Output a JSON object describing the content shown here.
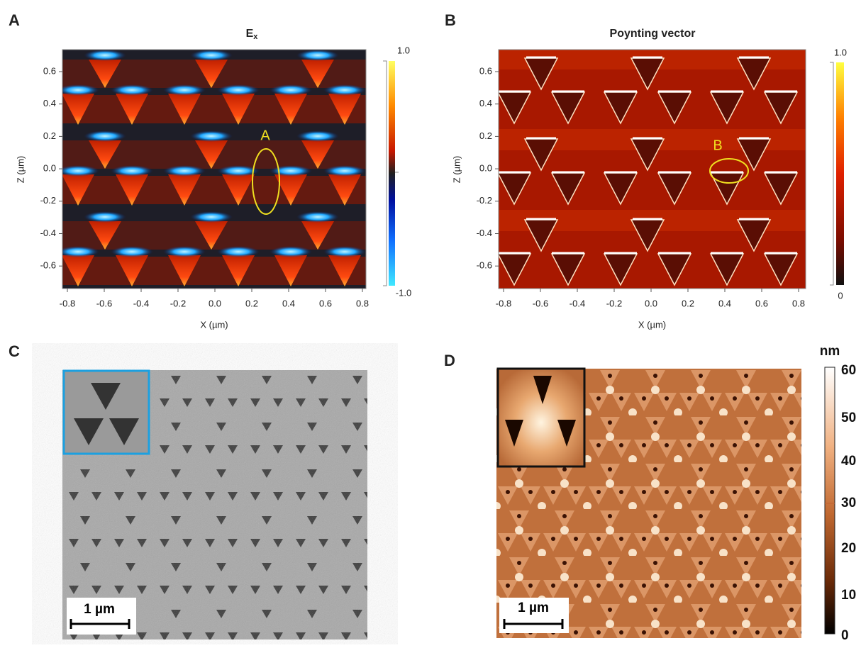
{
  "panels": [
    {
      "label": "A",
      "title": "E",
      "title_sub": "x",
      "annotation": "A",
      "x_axis_label": "X (µm)",
      "y_axis_label": "Z (µm)",
      "x_ticks": [
        "-0.8",
        "-0.6",
        "-0.4",
        "-0.2",
        "0.0",
        "0.2",
        "0.4",
        "0.6",
        "0.8"
      ],
      "y_ticks": [
        "0.6",
        "0.4",
        "0.2",
        "0.0",
        "-0.2",
        "-0.4",
        "-0.6"
      ],
      "colorbar_labels": [
        "1.0",
        "-1.0"
      ]
    },
    {
      "label": "B",
      "title": "Poynting vector",
      "annotation": "B",
      "x_axis_label": "X (µm)",
      "y_axis_label": "Z (µm)",
      "x_ticks": [
        "-0.8",
        "-0.6",
        "-0.4",
        "-0.2",
        "0.0",
        "0.2",
        "0.4",
        "0.6",
        "0.8"
      ],
      "y_ticks": [
        "0.6",
        "0.4",
        "0.2",
        "0.0",
        "-0.2",
        "-0.4",
        "-0.6"
      ],
      "colorbar_labels": [
        "1.0",
        "0"
      ]
    },
    {
      "label": "C",
      "scale_bar": "1 µm"
    },
    {
      "label": "D",
      "scale_bar": "1 µm",
      "colorbar_unit": "nm",
      "colorbar_labels": [
        "60",
        "50",
        "40",
        "30",
        "20",
        "10",
        "0"
      ]
    }
  ]
}
